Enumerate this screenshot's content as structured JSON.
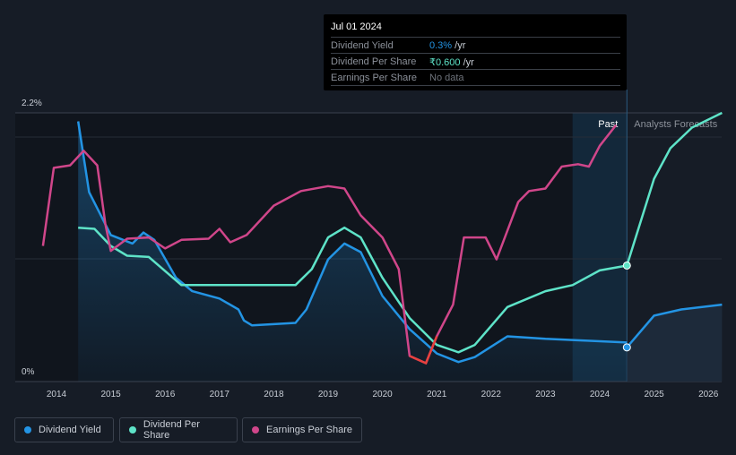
{
  "tooltip": {
    "date": "Jul 01 2024",
    "rows": [
      {
        "label": "Dividend Yield",
        "value": "0.3%",
        "unit": " /yr",
        "color": "#2394e4"
      },
      {
        "label": "Dividend Per Share",
        "value": "₹0.600",
        "unit": " /yr",
        "color": "#5ee3c8"
      },
      {
        "label": "Earnings Per Share",
        "value": "No data",
        "unit": "",
        "color": "#6d727a"
      }
    ]
  },
  "chart_data": {
    "type": "line",
    "y_ticks": [
      {
        "label": "2.2%",
        "value": 2.2
      },
      {
        "label": "0%",
        "value": 0
      }
    ],
    "ylim": [
      0,
      2.2
    ],
    "xlim": [
      2013.25,
      2026.25
    ],
    "x_ticks": [
      "2014",
      "2015",
      "2016",
      "2017",
      "2018",
      "2019",
      "2020",
      "2021",
      "2022",
      "2023",
      "2024",
      "2025",
      "2026"
    ],
    "past_label": "Past",
    "forecast_label": "Analysts Forecasts",
    "forecast_start": 2024.5,
    "highlight_start": 2023.5,
    "series": [
      {
        "name": "Dividend Yield",
        "color": "#2394e4",
        "marker": [
          2024.5,
          0.28
        ],
        "points": [
          [
            2014.4,
            2.13
          ],
          [
            2014.6,
            1.55
          ],
          [
            2015,
            1.2
          ],
          [
            2015.4,
            1.13
          ],
          [
            2015.6,
            1.22
          ],
          [
            2015.8,
            1.16
          ],
          [
            2016.2,
            0.85
          ],
          [
            2016.5,
            0.74
          ],
          [
            2017,
            0.68
          ],
          [
            2017.35,
            0.59
          ],
          [
            2017.45,
            0.5
          ],
          [
            2017.6,
            0.46
          ],
          [
            2018.4,
            0.48
          ],
          [
            2018.6,
            0.59
          ],
          [
            2019,
            1.0
          ],
          [
            2019.3,
            1.13
          ],
          [
            2019.6,
            1.06
          ],
          [
            2020,
            0.7
          ],
          [
            2020.5,
            0.43
          ],
          [
            2021,
            0.23
          ],
          [
            2021.4,
            0.16
          ],
          [
            2021.7,
            0.2
          ],
          [
            2022.3,
            0.37
          ],
          [
            2023,
            0.35
          ],
          [
            2023.5,
            0.34
          ],
          [
            2024.5,
            0.32
          ]
        ],
        "forecast": [
          [
            2024.5,
            0.28
          ],
          [
            2025,
            0.54
          ],
          [
            2025.5,
            0.59
          ],
          [
            2026.25,
            0.63
          ]
        ]
      },
      {
        "name": "Dividend Per Share",
        "color": "#5ee3c8",
        "marker": [
          2024.5,
          0.95
        ],
        "points": [
          [
            2014.4,
            1.26
          ],
          [
            2014.7,
            1.25
          ],
          [
            2015,
            1.11
          ],
          [
            2015.3,
            1.03
          ],
          [
            2015.7,
            1.02
          ],
          [
            2016.3,
            0.79
          ],
          [
            2018.4,
            0.79
          ],
          [
            2018.7,
            0.92
          ],
          [
            2019,
            1.18
          ],
          [
            2019.3,
            1.26
          ],
          [
            2019.6,
            1.18
          ],
          [
            2020,
            0.85
          ],
          [
            2020.5,
            0.52
          ],
          [
            2021,
            0.3
          ],
          [
            2021.4,
            0.24
          ],
          [
            2021.7,
            0.3
          ],
          [
            2022.3,
            0.61
          ],
          [
            2023,
            0.74
          ],
          [
            2023.5,
            0.79
          ],
          [
            2024,
            0.91
          ],
          [
            2024.5,
            0.95
          ]
        ],
        "forecast": [
          [
            2024.5,
            0.95
          ],
          [
            2025,
            1.66
          ],
          [
            2025.3,
            1.91
          ],
          [
            2025.7,
            2.08
          ],
          [
            2026.25,
            2.2
          ]
        ]
      },
      {
        "name": "Earnings Per Share",
        "color": "#d0468a",
        "negative_color": "#e8413e",
        "negative_range": [
          2020.4,
          2021.05
        ],
        "points": [
          [
            2013.75,
            1.11
          ],
          [
            2013.95,
            1.75
          ],
          [
            2014.25,
            1.77
          ],
          [
            2014.5,
            1.89
          ],
          [
            2014.75,
            1.77
          ],
          [
            2014.9,
            1.29
          ],
          [
            2015,
            1.07
          ],
          [
            2015.3,
            1.17
          ],
          [
            2015.7,
            1.18
          ],
          [
            2016,
            1.09
          ],
          [
            2016.3,
            1.16
          ],
          [
            2016.8,
            1.17
          ],
          [
            2017,
            1.25
          ],
          [
            2017.2,
            1.14
          ],
          [
            2017.5,
            1.2
          ],
          [
            2018,
            1.44
          ],
          [
            2018.5,
            1.56
          ],
          [
            2019,
            1.6
          ],
          [
            2019.3,
            1.58
          ],
          [
            2019.6,
            1.36
          ],
          [
            2020,
            1.18
          ],
          [
            2020.3,
            0.92
          ],
          [
            2020.5,
            0.21
          ],
          [
            2020.8,
            0.15
          ],
          [
            2021,
            0.37
          ],
          [
            2021.3,
            0.63
          ],
          [
            2021.5,
            1.18
          ],
          [
            2021.9,
            1.18
          ],
          [
            2022.1,
            1.0
          ],
          [
            2022.5,
            1.47
          ],
          [
            2022.7,
            1.56
          ],
          [
            2023,
            1.58
          ],
          [
            2023.3,
            1.76
          ],
          [
            2023.6,
            1.78
          ],
          [
            2023.8,
            1.76
          ],
          [
            2024,
            1.93
          ],
          [
            2024.3,
            2.1
          ]
        ]
      }
    ]
  },
  "legend": [
    {
      "label": "Dividend Yield",
      "color": "#2394e4"
    },
    {
      "label": "Dividend Per Share",
      "color": "#5ee3c8"
    },
    {
      "label": "Earnings Per Share",
      "color": "#d0468a"
    }
  ]
}
